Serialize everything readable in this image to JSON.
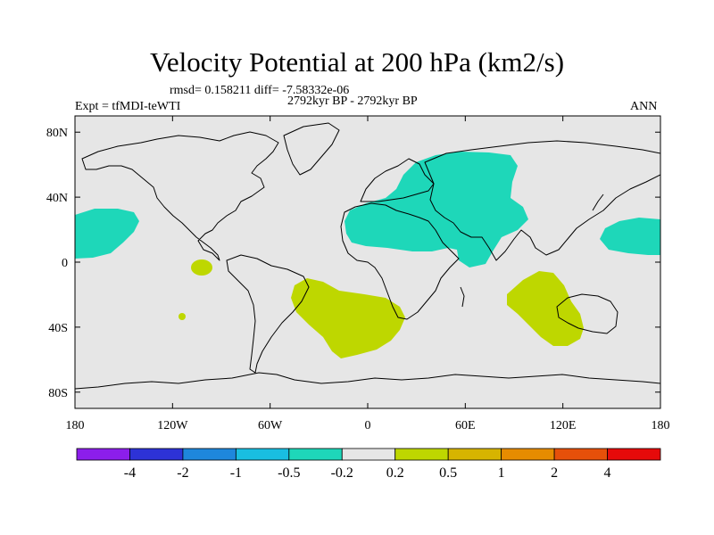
{
  "title": "Velocity Potential at 200 hPa (km2/s)",
  "stats": "rmsd= 0.158211  diff= -7.58332e-06",
  "experiment": "Expt = tfMDI-teWTI",
  "period": "2792kyr BP - 2792kyr BP",
  "season": "ANN",
  "map": {
    "background": "#e6e6e6",
    "lon_ticks": [
      "180",
      "120W",
      "60W",
      "0",
      "60E",
      "120E",
      "180"
    ],
    "lat_ticks": [
      "80N",
      "40N",
      "0",
      "40S",
      "80S"
    ],
    "lon_range": [
      -180,
      180
    ],
    "lat_range": [
      -90,
      90
    ],
    "regions": [
      {
        "label": "negative",
        "color": "#1ed7b9",
        "name": "north-africa-asia-negative-anomaly"
      },
      {
        "label": "negative",
        "color": "#1ed7b9",
        "name": "east-pacific-negative-anomaly"
      },
      {
        "label": "negative",
        "color": "#1ed7b9",
        "name": "west-pacific-negative-anomaly"
      },
      {
        "label": "positive",
        "color": "#bed700",
        "name": "south-atlantic-positive-anomaly"
      },
      {
        "label": "positive",
        "color": "#bed700",
        "name": "indian-ocean-positive-anomaly"
      },
      {
        "label": "positive",
        "color": "#bed700",
        "name": "east-pacific-positive-patch"
      },
      {
        "label": "positive",
        "color": "#bed700",
        "name": "southeast-pacific-positive-patch"
      }
    ]
  },
  "colorbar": {
    "colors": [
      "#8c1eeb",
      "#2d32d7",
      "#1e87dc",
      "#19bee1",
      "#1ed7b9",
      "#e6e6e6",
      "#bed700",
      "#d7b400",
      "#e68c00",
      "#e6500a",
      "#e60a0a"
    ],
    "labels": [
      "-4",
      "-2",
      "-1",
      "-0.5",
      "-0.2",
      "0.2",
      "0.5",
      "1",
      "2",
      "4"
    ]
  }
}
